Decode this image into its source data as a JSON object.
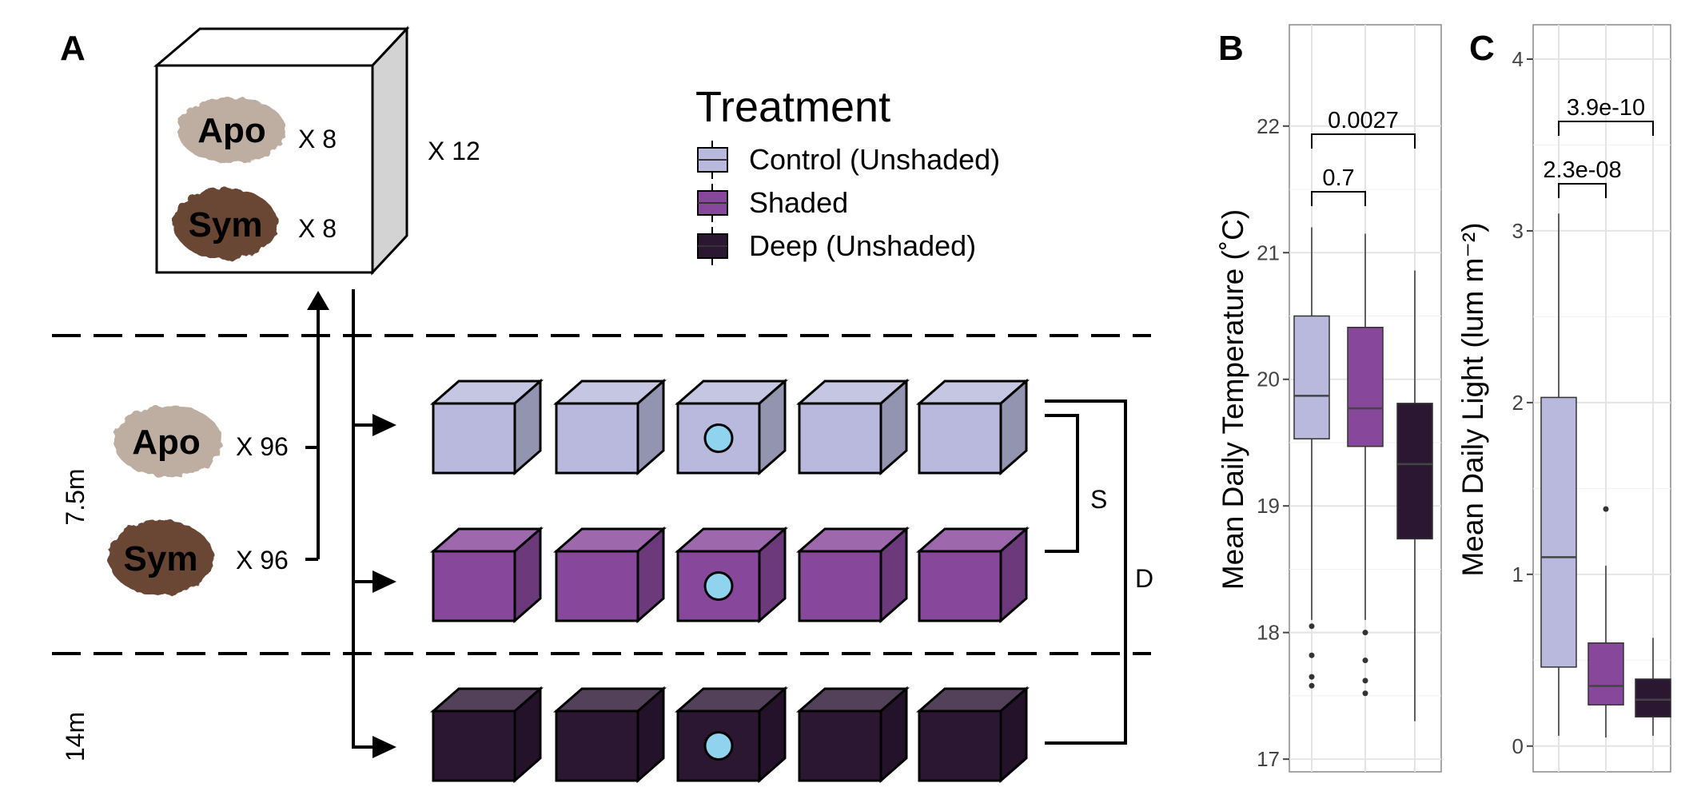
{
  "panels": {
    "a": "A",
    "b": "B",
    "c": "C"
  },
  "tank": {
    "coral_top": "Apo",
    "coral_bottom": "Sym",
    "count_top": "X 8",
    "count_bottom": "X 8",
    "tank_count": "X 12"
  },
  "source": {
    "coral_top": "Apo",
    "coral_bottom": "Sym",
    "count_top": "X 96",
    "count_bottom": "X 96"
  },
  "depths": {
    "shallow": "7.5m",
    "deep": "14m"
  },
  "brackets": {
    "shade": "S",
    "depth": "D"
  },
  "legend": {
    "title": "Treatment",
    "items": [
      {
        "label": "Control (Unshaded)",
        "color": "#b8b9dc"
      },
      {
        "label": "Shaded",
        "color": "#87479a"
      },
      {
        "label": "Deep (Unshaded)",
        "color": "#2c1733"
      }
    ]
  },
  "colors": {
    "control": "#b8b9dc",
    "shaded": "#87479a",
    "deep": "#2c1733",
    "logger": "#8fd3ee",
    "apo": "#bdaea1",
    "sym": "#6b4636"
  },
  "rows": [
    {
      "treatment": "Control (Unshaded)",
      "tanks": 5,
      "logger_index": 2
    },
    {
      "treatment": "Shaded",
      "tanks": 5,
      "logger_index": 2
    },
    {
      "treatment": "Deep (Unshaded)",
      "tanks": 5,
      "logger_index": 2
    }
  ],
  "chart_data": [
    {
      "type": "box",
      "panel": "B",
      "ylabel": "Mean Daily Temperature (˚C)",
      "ylim": [
        16.9,
        22.8
      ],
      "yticks": [
        17,
        18,
        19,
        20,
        21,
        22
      ],
      "grid": true,
      "series": [
        {
          "name": "Control (Unshaded)",
          "min": 18.1,
          "q1": 19.53,
          "median": 19.87,
          "q3": 20.5,
          "max": 21.2,
          "outliers": [
            18.05,
            17.82,
            17.65,
            17.58
          ]
        },
        {
          "name": "Shaded",
          "min": 18.1,
          "q1": 19.47,
          "median": 19.77,
          "q3": 20.41,
          "max": 21.15,
          "outliers": [
            18.0,
            17.78,
            17.62,
            17.52
          ]
        },
        {
          "name": "Deep (Unshaded)",
          "min": 17.3,
          "q1": 18.74,
          "median": 19.33,
          "q3": 19.81,
          "max": 20.86,
          "outliers": []
        }
      ],
      "comparisons": [
        {
          "groups": [
            "Control (Unshaded)",
            "Shaded"
          ],
          "p": "0.7"
        },
        {
          "groups": [
            "Control (Unshaded)",
            "Deep (Unshaded)"
          ],
          "p": "0.0027"
        }
      ]
    },
    {
      "type": "box",
      "panel": "C",
      "ylabel": "Mean Daily Light (lum m⁻²)",
      "ylim": [
        -0.15,
        4.2
      ],
      "yticks": [
        0,
        1,
        2,
        3,
        4
      ],
      "grid": true,
      "series": [
        {
          "name": "Control (Unshaded)",
          "min": 0.06,
          "q1": 0.46,
          "median": 1.1,
          "q3": 2.03,
          "max": 3.1,
          "outliers": []
        },
        {
          "name": "Shaded",
          "min": 0.05,
          "q1": 0.24,
          "median": 0.35,
          "q3": 0.6,
          "max": 1.05,
          "outliers": [
            1.38
          ]
        },
        {
          "name": "Deep (Unshaded)",
          "min": 0.06,
          "q1": 0.17,
          "median": 0.27,
          "q3": 0.39,
          "max": 0.63,
          "outliers": []
        }
      ],
      "comparisons": [
        {
          "groups": [
            "Control (Unshaded)",
            "Shaded"
          ],
          "p": "2.3e-08"
        },
        {
          "groups": [
            "Control (Unshaded)",
            "Deep (Unshaded)"
          ],
          "p": "3.9e-10"
        }
      ]
    }
  ]
}
